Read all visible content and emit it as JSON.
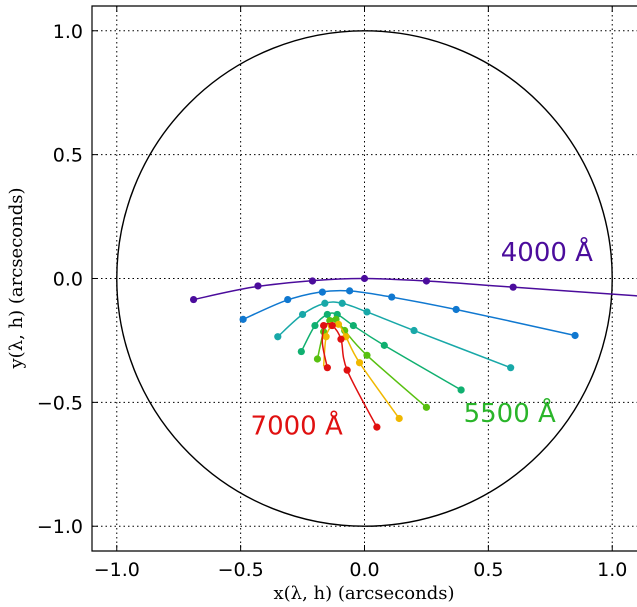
{
  "chart_data": {
    "type": "line",
    "xlabel": "x(λ, h) (arcseconds)",
    "ylabel": "y(λ, h) (arcseconds)",
    "xlim": [
      -1.1,
      1.1
    ],
    "ylim": [
      -1.1,
      1.1
    ],
    "xticks": [
      -1.0,
      -0.5,
      0.0,
      0.5,
      1.0
    ],
    "yticks": [
      -1.0,
      -0.5,
      0.0,
      0.5,
      1.0
    ],
    "xtick_labels": [
      "−1.0",
      "−0.5",
      "0.0",
      "0.5",
      "1.0"
    ],
    "ytick_labels": [
      "−1.0",
      "−0.5",
      "0.0",
      "0.5",
      "1.0"
    ],
    "grid": true,
    "circle": {
      "center": [
        0,
        0
      ],
      "radius": 1.0,
      "color": "#000000"
    },
    "annotations": [
      {
        "text": "4000 Å",
        "x": 0.55,
        "y": 0.07,
        "color": "#4b0c9c"
      },
      {
        "text": "5500 Å",
        "x": 0.4,
        "y": -0.58,
        "color": "#2ab52a"
      },
      {
        "text": "7000 Å",
        "x": -0.46,
        "y": -0.63,
        "color": "#e01010"
      }
    ],
    "series": [
      {
        "color": "#4b0c9c",
        "curve": [
          [
            -0.69,
            -0.085
          ],
          [
            -0.45,
            -0.035
          ],
          [
            -0.2,
            -0.008
          ],
          [
            0,
            0
          ],
          [
            0.25,
            -0.01
          ],
          [
            0.6,
            -0.035
          ],
          [
            1.1,
            -0.07
          ]
        ],
        "points": [
          [
            -0.69,
            -0.085
          ],
          [
            -0.43,
            -0.03
          ],
          [
            -0.21,
            -0.01
          ],
          [
            0,
            0
          ],
          [
            0.25,
            -0.01
          ],
          [
            0.6,
            -0.035
          ]
        ]
      },
      {
        "color": "#1078d0",
        "curve": [
          [
            -0.49,
            -0.165
          ],
          [
            -0.32,
            -0.09
          ],
          [
            -0.18,
            -0.055
          ],
          [
            -0.06,
            -0.05
          ],
          [
            0.11,
            -0.075
          ],
          [
            0.37,
            -0.125
          ],
          [
            0.85,
            -0.23
          ]
        ],
        "points": [
          [
            -0.49,
            -0.165
          ],
          [
            -0.31,
            -0.085
          ],
          [
            -0.17,
            -0.055
          ],
          [
            -0.06,
            -0.05
          ],
          [
            0.11,
            -0.075
          ],
          [
            0.37,
            -0.125
          ],
          [
            0.85,
            -0.23
          ]
        ]
      },
      {
        "color": "#18a8a8",
        "curve": [
          [
            -0.35,
            -0.235
          ],
          [
            -0.25,
            -0.145
          ],
          [
            -0.16,
            -0.1
          ],
          [
            -0.09,
            -0.1
          ],
          [
            0.01,
            -0.135
          ],
          [
            0.2,
            -0.21
          ],
          [
            0.59,
            -0.36
          ]
        ],
        "points": [
          [
            -0.35,
            -0.235
          ],
          [
            -0.25,
            -0.145
          ],
          [
            -0.16,
            -0.1
          ],
          [
            -0.09,
            -0.1
          ],
          [
            0.01,
            -0.135
          ],
          [
            0.2,
            -0.21
          ],
          [
            0.59,
            -0.36
          ]
        ]
      },
      {
        "color": "#10b070",
        "curve": [
          [
            -0.255,
            -0.295
          ],
          [
            -0.2,
            -0.19
          ],
          [
            -0.15,
            -0.145
          ],
          [
            -0.11,
            -0.145
          ],
          [
            -0.045,
            -0.19
          ],
          [
            0.08,
            -0.27
          ],
          [
            0.39,
            -0.45
          ]
        ],
        "points": [
          [
            -0.255,
            -0.295
          ],
          [
            -0.2,
            -0.19
          ],
          [
            -0.15,
            -0.145
          ],
          [
            -0.11,
            -0.145
          ],
          [
            -0.045,
            -0.19
          ],
          [
            0.08,
            -0.27
          ],
          [
            0.39,
            -0.45
          ]
        ]
      },
      {
        "color": "#58c010",
        "curve": [
          [
            -0.19,
            -0.325
          ],
          [
            -0.165,
            -0.215
          ],
          [
            -0.14,
            -0.17
          ],
          [
            -0.115,
            -0.165
          ],
          [
            -0.08,
            -0.21
          ],
          [
            0.01,
            -0.31
          ],
          [
            0.25,
            -0.52
          ]
        ],
        "points": [
          [
            -0.19,
            -0.325
          ],
          [
            -0.165,
            -0.215
          ],
          [
            -0.14,
            -0.17
          ],
          [
            -0.115,
            -0.165
          ],
          [
            -0.08,
            -0.21
          ],
          [
            0.01,
            -0.31
          ],
          [
            0.25,
            -0.52
          ]
        ]
      },
      {
        "color": "#f0b800",
        "curve": [
          [
            -0.165,
            -0.355
          ],
          [
            -0.155,
            -0.235
          ],
          [
            -0.13,
            -0.19
          ],
          [
            -0.105,
            -0.185
          ],
          [
            -0.075,
            -0.235
          ],
          [
            -0.02,
            -0.34
          ],
          [
            0.14,
            -0.565
          ]
        ],
        "points": [
          [
            -0.155,
            -0.235
          ],
          [
            -0.135,
            -0.19
          ],
          [
            -0.105,
            -0.185
          ],
          [
            -0.075,
            -0.235
          ],
          [
            -0.02,
            -0.34
          ],
          [
            0.14,
            -0.565
          ]
        ]
      },
      {
        "color": "#e01010",
        "curve": [
          [
            -0.15,
            -0.36
          ],
          [
            -0.17,
            -0.26
          ],
          [
            -0.16,
            -0.19
          ],
          [
            -0.13,
            -0.19
          ],
          [
            -0.095,
            -0.245
          ],
          [
            -0.07,
            -0.37
          ],
          [
            0.05,
            -0.6
          ]
        ],
        "points": [
          [
            -0.15,
            -0.36
          ],
          [
            -0.165,
            -0.19
          ],
          [
            -0.13,
            -0.19
          ],
          [
            -0.095,
            -0.245
          ],
          [
            -0.07,
            -0.37
          ],
          [
            0.05,
            -0.6
          ]
        ]
      }
    ]
  }
}
